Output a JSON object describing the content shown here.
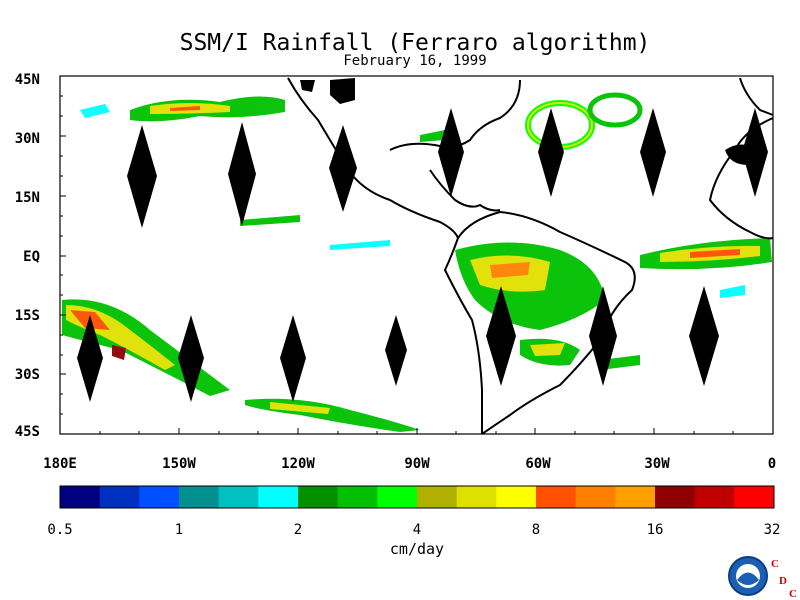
{
  "title": "SSM/I Rainfall (Ferraro algorithm)",
  "subtitle": "February 16, 1999",
  "lat_labels": [
    "45N",
    "30N",
    "15N",
    "EQ",
    "15S",
    "30S",
    "45S"
  ],
  "lon_labels": [
    "180E",
    "150W",
    "120W",
    "90W",
    "60W",
    "30W",
    "0"
  ],
  "colorbar": {
    "units": "cm/day",
    "labels": [
      "0.5",
      "1",
      "2",
      "4",
      "8",
      "16",
      "32"
    ],
    "colors": [
      "#000080",
      "#0030c0",
      "#0050ff",
      "#009090",
      "#00c0c0",
      "#00ffff",
      "#009000",
      "#00c000",
      "#00ff00",
      "#b0b000",
      "#e0e000",
      "#ffff00",
      "#ff5000",
      "#ff8000",
      "#ffa000",
      "#900000",
      "#c00000",
      "#ff0000"
    ]
  },
  "logo": {
    "agency": "NOAA",
    "letters": [
      "C",
      "D",
      "C"
    ],
    "letter_color": "#cc0000"
  }
}
